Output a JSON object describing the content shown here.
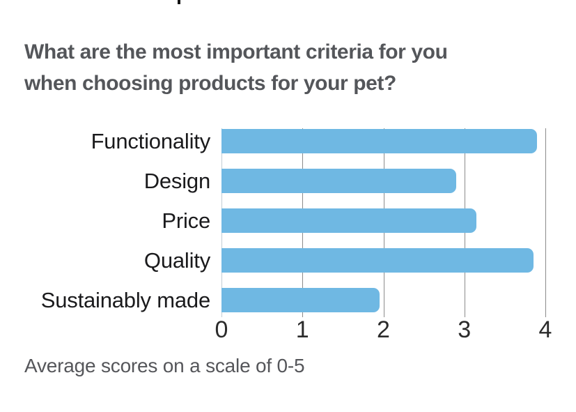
{
  "title": {
    "line1": "What are the most important criteria for you",
    "line2": "when choosing products for your pet?",
    "color": "#54565A"
  },
  "chart_data": {
    "type": "bar",
    "orientation": "horizontal",
    "title": "What are the most important criteria for you when choosing products for your pet?",
    "categories": [
      "Functionality",
      "Design",
      "Price",
      "Quality",
      "Sustainably made"
    ],
    "values": [
      3.9,
      2.9,
      3.15,
      3.85,
      1.95
    ],
    "xlabel": "",
    "ylabel": "",
    "xlim": [
      0,
      4
    ],
    "x_ticks": [
      "0",
      "1",
      "2",
      "3",
      "4"
    ],
    "grid": true,
    "legend": false,
    "bar_color": "#6FB8E3",
    "gridline_color": "#8b8b8b",
    "note": "Average scores on a scale of 0-5"
  },
  "footer": {
    "text": "Average scores on a scale of 0-5"
  }
}
